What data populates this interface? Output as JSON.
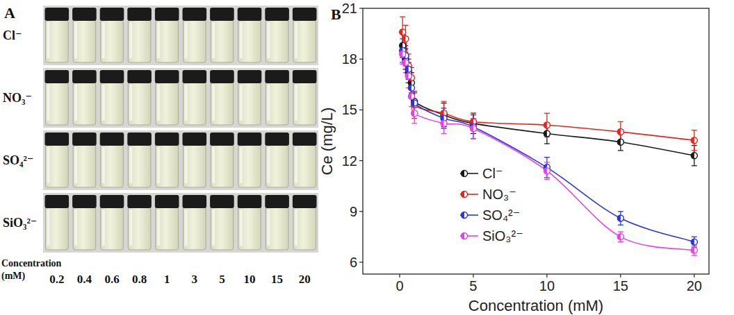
{
  "panel_a": {
    "label": "A",
    "rows": [
      "Cl⁻",
      "NO₃⁻",
      "SO₄²⁻",
      "SiO₃²⁻"
    ],
    "concentration_label": [
      "Concentration",
      "(mM)"
    ],
    "concentrations": [
      "0.2",
      "0.4",
      "0.6",
      "0.8",
      "1",
      "3",
      "5",
      "10",
      "15",
      "20"
    ]
  },
  "chart_data": {
    "type": "line",
    "annotations": [
      "B"
    ],
    "x_label": "Concentration (mM)",
    "y_label": "Ce (mg/L)",
    "x": [
      0.2,
      0.4,
      0.6,
      0.8,
      1,
      3,
      5,
      10,
      15,
      20
    ],
    "series": [
      {
        "name": "Cl⁻",
        "color": "#1a1a1a",
        "marker": "circle",
        "values": [
          18.8,
          18.0,
          17.2,
          16.6,
          15.5,
          14.7,
          14.2,
          13.6,
          13.1,
          12.3
        ],
        "errors": [
          0.7,
          0.6,
          0.6,
          0.6,
          0.6,
          0.7,
          0.6,
          0.6,
          0.5,
          0.6
        ]
      },
      {
        "name": "NO₃⁻",
        "color": "#e8231c",
        "marker": "circle",
        "values": [
          19.6,
          19.2,
          17.6,
          16.9,
          15.3,
          14.8,
          14.3,
          14.1,
          13.7,
          13.2
        ],
        "errors": [
          0.9,
          0.8,
          0.7,
          0.6,
          0.8,
          0.7,
          0.5,
          0.7,
          0.6,
          0.6
        ]
      },
      {
        "name": "SO₄²⁻",
        "color": "#2b35e0",
        "marker": "circle",
        "values": [
          18.5,
          18.2,
          17.4,
          16.3,
          15.4,
          14.5,
          14.0,
          11.6,
          8.6,
          7.2
        ],
        "errors": [
          0.7,
          0.6,
          0.6,
          0.6,
          0.6,
          0.6,
          0.7,
          0.6,
          0.4,
          0.3
        ]
      },
      {
        "name": "SiO₃²⁻",
        "color": "#e840e8",
        "marker": "circle",
        "values": [
          18.3,
          17.8,
          17.0,
          15.8,
          14.8,
          14.2,
          13.9,
          11.4,
          7.5,
          6.7
        ],
        "errors": [
          0.6,
          0.6,
          0.7,
          0.6,
          0.6,
          0.6,
          0.6,
          0.5,
          0.3,
          0.3
        ]
      }
    ],
    "xlim": [
      -2.5,
      21
    ],
    "ylim": [
      5.3,
      21
    ],
    "xticks": [
      0,
      5,
      10,
      15,
      20
    ],
    "yticks": [
      6,
      9,
      12,
      15,
      18,
      21
    ],
    "legend": "center",
    "grid": false
  }
}
